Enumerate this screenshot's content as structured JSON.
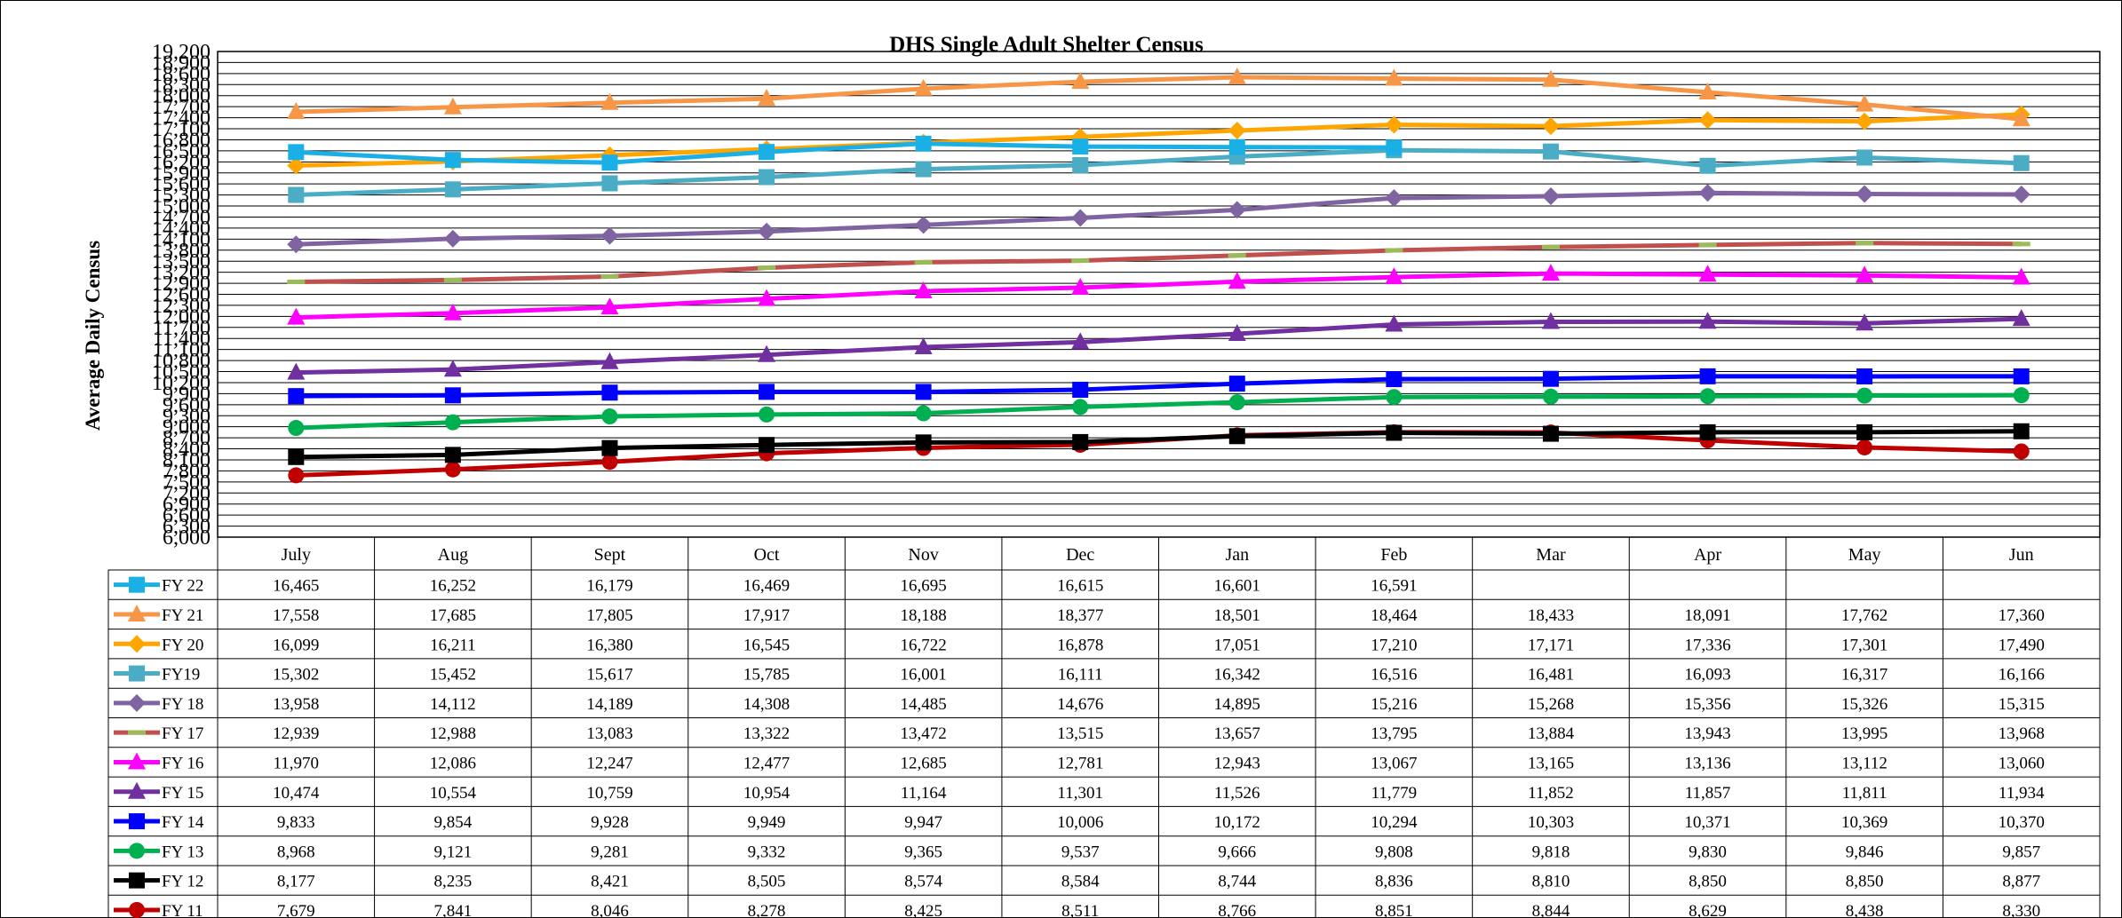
{
  "chart_data": {
    "type": "line",
    "title": "DHS Single Adult Shelter Census",
    "ylabel": "Average Daily Census",
    "xlabel": "",
    "ylim": [
      6000,
      19200
    ],
    "yticks": [
      "6,000",
      "6,300",
      "6,600",
      "6,900",
      "7,200",
      "7,500",
      "7,800",
      "8,100",
      "8,400",
      "8,700",
      "9,000",
      "9,300",
      "9,600",
      "9,900",
      "10,200",
      "10,500",
      "10,800",
      "11,100",
      "11,400",
      "11,700",
      "12,000",
      "12,300",
      "12,600",
      "12,900",
      "13,200",
      "13,500",
      "13,800",
      "14,100",
      "14,400",
      "14,700",
      "15,000",
      "15,300",
      "15,600",
      "15,900",
      "16,200",
      "16,500",
      "16,800",
      "17,100",
      "17,400",
      "17,700",
      "18,000",
      "18,300",
      "18,600",
      "18,900",
      "19,200"
    ],
    "categories": [
      "July",
      "Aug",
      "Sept",
      "Oct",
      "Nov",
      "Dec",
      "Jan",
      "Feb",
      "Mar",
      "Apr",
      "May",
      "Jun"
    ],
    "grid": true,
    "legend": "data-table",
    "series": [
      {
        "name": "FY 22",
        "color": "#1ab0e6",
        "marker": "square",
        "values": [
          16465,
          16252,
          16179,
          16469,
          16695,
          16615,
          16601,
          16591,
          null,
          null,
          null,
          null
        ],
        "labels": [
          "16,465",
          "16,252",
          "16,179",
          "16,469",
          "16,695",
          "16,615",
          "16,601",
          "16,591",
          "",
          "",
          "",
          ""
        ]
      },
      {
        "name": "FY 21",
        "color": "#f79646",
        "marker": "triangle",
        "values": [
          17558,
          17685,
          17805,
          17917,
          18188,
          18377,
          18501,
          18464,
          18433,
          18091,
          17762,
          17360
        ],
        "labels": [
          "17,558",
          "17,685",
          "17,805",
          "17,917",
          "18,188",
          "18,377",
          "18,501",
          "18,464",
          "18,433",
          "18,091",
          "17,762",
          "17,360"
        ]
      },
      {
        "name": "FY 20",
        "color": "#ffa500",
        "marker": "diamond",
        "values": [
          16099,
          16211,
          16380,
          16545,
          16722,
          16878,
          17051,
          17210,
          17171,
          17336,
          17301,
          17490
        ],
        "labels": [
          "16,099",
          "16,211",
          "16,380",
          "16,545",
          "16,722",
          "16,878",
          "17,051",
          "17,210",
          "17,171",
          "17,336",
          "17,301",
          "17,490"
        ]
      },
      {
        "name": "FY19",
        "color": "#4bacc6",
        "marker": "square",
        "values": [
          15302,
          15452,
          15617,
          15785,
          16001,
          16111,
          16342,
          16516,
          16481,
          16093,
          16317,
          16166
        ],
        "labels": [
          "15,302",
          "15,452",
          "15,617",
          "15,785",
          "16,001",
          "16,111",
          "16,342",
          "16,516",
          "16,481",
          "16,093",
          "16,317",
          "16,166"
        ]
      },
      {
        "name": "FY 18",
        "color": "#8064a2",
        "marker": "diamond",
        "values": [
          13958,
          14112,
          14189,
          14308,
          14485,
          14676,
          14895,
          15216,
          15268,
          15356,
          15326,
          15315
        ],
        "labels": [
          "13,958",
          "14,112",
          "14,189",
          "14,308",
          "14,485",
          "14,676",
          "14,895",
          "15,216",
          "15,268",
          "15,356",
          "15,326",
          "15,315"
        ]
      },
      {
        "name": "FY 17",
        "color": "#c0504d",
        "marker": "dash",
        "values": [
          12939,
          12988,
          13083,
          13322,
          13472,
          13515,
          13657,
          13795,
          13884,
          13943,
          13995,
          13968
        ],
        "labels": [
          "12,939",
          "12,988",
          "13,083",
          "13,322",
          "13,472",
          "13,515",
          "13,657",
          "13,795",
          "13,884",
          "13,943",
          "13,995",
          "13,968"
        ]
      },
      {
        "name": "FY 16",
        "color": "#ff00ff",
        "marker": "triangle",
        "values": [
          11970,
          12086,
          12247,
          12477,
          12685,
          12781,
          12943,
          13067,
          13165,
          13136,
          13112,
          13060
        ],
        "labels": [
          "11,970",
          "12,086",
          "12,247",
          "12,477",
          "12,685",
          "12,781",
          "12,943",
          "13,067",
          "13,165",
          "13,136",
          "13,112",
          "13,060"
        ]
      },
      {
        "name": "FY 15",
        "color": "#7030a0",
        "marker": "triangle",
        "values": [
          10474,
          10554,
          10759,
          10954,
          11164,
          11301,
          11526,
          11779,
          11852,
          11857,
          11811,
          11934
        ],
        "labels": [
          "10,474",
          "10,554",
          "10,759",
          "10,954",
          "11,164",
          "11,301",
          "11,526",
          "11,779",
          "11,852",
          "11,857",
          "11,811",
          "11,934"
        ]
      },
      {
        "name": "FY 14",
        "color": "#0000ff",
        "marker": "square",
        "values": [
          9833,
          9854,
          9928,
          9949,
          9947,
          10006,
          10172,
          10294,
          10303,
          10371,
          10369,
          10370
        ],
        "labels": [
          "9,833",
          "9,854",
          "9,928",
          "9,949",
          "9,947",
          "10,006",
          "10,172",
          "10,294",
          "10,303",
          "10,371",
          "10,369",
          "10,370"
        ]
      },
      {
        "name": "FY 13",
        "color": "#00b050",
        "marker": "circle",
        "values": [
          8968,
          9121,
          9281,
          9332,
          9365,
          9537,
          9666,
          9808,
          9818,
          9830,
          9846,
          9857
        ],
        "labels": [
          "8,968",
          "9,121",
          "9,281",
          "9,332",
          "9,365",
          "9,537",
          "9,666",
          "9,808",
          "9,818",
          "9,830",
          "9,846",
          "9,857"
        ]
      },
      {
        "name": "FY 12",
        "color": "#000000",
        "marker": "square",
        "values": [
          8177,
          8235,
          8421,
          8505,
          8574,
          8584,
          8744,
          8836,
          8810,
          8850,
          8850,
          8877
        ],
        "labels": [
          "8,177",
          "8,235",
          "8,421",
          "8,505",
          "8,574",
          "8,584",
          "8,744",
          "8,836",
          "8,810",
          "8,850",
          "8,850",
          "8,877"
        ]
      },
      {
        "name": "FY 11",
        "color": "#c00000",
        "marker": "circle",
        "values": [
          7679,
          7841,
          8046,
          8278,
          8425,
          8511,
          8766,
          8851,
          8844,
          8629,
          8438,
          8330
        ],
        "labels": [
          "7,679",
          "7,841",
          "8,046",
          "8,278",
          "8,425",
          "8,511",
          "8,766",
          "8,851",
          "8,844",
          "8,629",
          "8,438",
          "8,330"
        ]
      }
    ]
  }
}
